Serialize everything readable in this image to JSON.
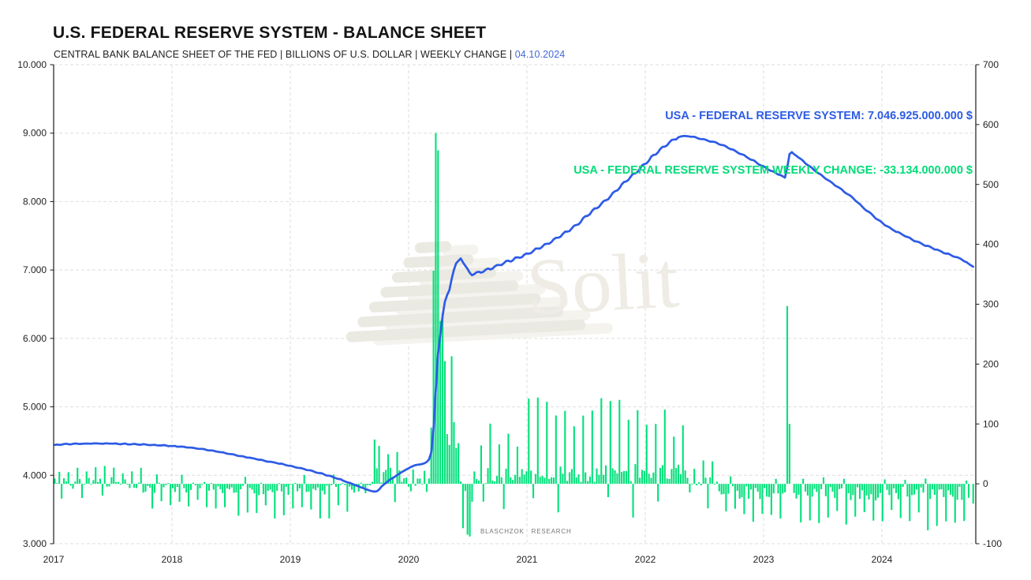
{
  "header": {
    "title": "U.S. FEDERAL RESERVE SYSTEM - BALANCE SHEET",
    "subtitle_text": "CENTRAL BANK BALANCE SHEET OF THE FED | BILLIONS OF U.S. DOLLAR | WEEKLY CHANGE | ",
    "subtitle_date": "04.10.2024",
    "date_color": "#3f6bd4"
  },
  "legend": {
    "line1": "USA - FEDERAL RESERVE SYSTEM: 7.046.925.000.000 $",
    "line2": "USA - FEDERAL RESERVE SYSTEM WEEKLY CHANGE: -33.134.000.000 $",
    "line1_color": "#2d5be6",
    "line2_color": "#00dc78"
  },
  "watermark": {
    "text": "Solit",
    "color": "#eeece5"
  },
  "branding": {
    "text": "BLASCHZOK RESEARCH"
  },
  "chart_data": {
    "type": "combo line+bar",
    "title": "U.S. FEDERAL RESERVE SYSTEM - BALANCE SHEET",
    "grid": "dashed",
    "seed": 20241004,
    "x_axis": {
      "ticks": [
        "2017",
        "2018",
        "2019",
        "2020",
        "2021",
        "2022",
        "2023",
        "2024"
      ],
      "tick_values": [
        2017,
        2018,
        2019,
        2020,
        2021,
        2022,
        2023,
        2024
      ],
      "min": 2017.0,
      "max": 2024.79
    },
    "left_axis": {
      "ticks": [
        "10.000",
        "9.000",
        "8.000",
        "7.000",
        "6.000",
        "5.000",
        "4.000",
        "3.000"
      ],
      "tick_values": [
        10000,
        9000,
        8000,
        7000,
        6000,
        5000,
        4000,
        3000
      ],
      "min": 3000,
      "max": 10000,
      "unit": "billions of U.S. dollar"
    },
    "right_axis": {
      "ticks": [
        "700",
        "600",
        "500",
        "400",
        "300",
        "200",
        "100",
        "0",
        "-100"
      ],
      "tick_values": [
        700,
        600,
        500,
        400,
        300,
        200,
        100,
        0,
        -100
      ],
      "min": -100,
      "max": 700,
      "unit": "billions of U.S. dollar weekly change"
    },
    "series": [
      {
        "name": "USA - FEDERAL RESERVE SYSTEM",
        "type": "line",
        "axis": "left",
        "color": "#2d5be6",
        "last_value_billions": 7046.925,
        "anchors": [
          [
            2017.0,
            4440
          ],
          [
            2017.1,
            4455
          ],
          [
            2017.25,
            4462
          ],
          [
            2017.45,
            4464
          ],
          [
            2017.6,
            4458
          ],
          [
            2017.75,
            4450
          ],
          [
            2017.92,
            4436
          ],
          [
            2018.08,
            4418
          ],
          [
            2018.25,
            4386
          ],
          [
            2018.42,
            4336
          ],
          [
            2018.58,
            4282
          ],
          [
            2018.75,
            4224
          ],
          [
            2018.92,
            4168
          ],
          [
            2019.08,
            4108
          ],
          [
            2019.25,
            4032
          ],
          [
            2019.42,
            3940
          ],
          [
            2019.55,
            3856
          ],
          [
            2019.63,
            3802
          ],
          [
            2019.7,
            3760
          ],
          [
            2019.74,
            3768
          ],
          [
            2019.78,
            3852
          ],
          [
            2019.85,
            3945
          ],
          [
            2019.92,
            4020
          ],
          [
            2020.0,
            4105
          ],
          [
            2020.06,
            4150
          ],
          [
            2020.13,
            4168
          ],
          [
            2020.17,
            4220
          ],
          [
            2020.19,
            4312
          ],
          [
            2020.21,
            4668
          ],
          [
            2020.23,
            5254
          ],
          [
            2020.25,
            5811
          ],
          [
            2020.27,
            6083
          ],
          [
            2020.29,
            6368
          ],
          [
            2020.31,
            6573
          ],
          [
            2020.33,
            6656
          ],
          [
            2020.35,
            6721
          ],
          [
            2020.37,
            6934
          ],
          [
            2020.4,
            7095
          ],
          [
            2020.44,
            7169
          ],
          [
            2020.47,
            7084
          ],
          [
            2020.5,
            7012
          ],
          [
            2020.53,
            6921
          ],
          [
            2020.58,
            6956
          ],
          [
            2020.67,
            7006
          ],
          [
            2020.75,
            7060
          ],
          [
            2020.83,
            7122
          ],
          [
            2020.92,
            7176
          ],
          [
            2021.0,
            7230
          ],
          [
            2021.08,
            7302
          ],
          [
            2021.17,
            7380
          ],
          [
            2021.25,
            7462
          ],
          [
            2021.33,
            7552
          ],
          [
            2021.42,
            7656
          ],
          [
            2021.5,
            7782
          ],
          [
            2021.58,
            7898
          ],
          [
            2021.67,
            8022
          ],
          [
            2021.75,
            8152
          ],
          [
            2021.83,
            8288
          ],
          [
            2021.92,
            8424
          ],
          [
            2022.0,
            8556
          ],
          [
            2022.08,
            8690
          ],
          [
            2022.17,
            8816
          ],
          [
            2022.25,
            8922
          ],
          [
            2022.31,
            8958
          ],
          [
            2022.38,
            8952
          ],
          [
            2022.46,
            8922
          ],
          [
            2022.54,
            8888
          ],
          [
            2022.63,
            8842
          ],
          [
            2022.71,
            8782
          ],
          [
            2022.79,
            8712
          ],
          [
            2022.88,
            8630
          ],
          [
            2022.96,
            8548
          ],
          [
            2023.04,
            8470
          ],
          [
            2023.1,
            8420
          ],
          [
            2023.15,
            8380
          ],
          [
            2023.19,
            8340
          ],
          [
            2023.21,
            8660
          ],
          [
            2023.23,
            8732
          ],
          [
            2023.29,
            8650
          ],
          [
            2023.35,
            8570
          ],
          [
            2023.42,
            8470
          ],
          [
            2023.5,
            8370
          ],
          [
            2023.58,
            8270
          ],
          [
            2023.67,
            8160
          ],
          [
            2023.75,
            8060
          ],
          [
            2023.83,
            7930
          ],
          [
            2023.92,
            7800
          ],
          [
            2024.0,
            7690
          ],
          [
            2024.08,
            7600
          ],
          [
            2024.17,
            7520
          ],
          [
            2024.25,
            7450
          ],
          [
            2024.33,
            7385
          ],
          [
            2024.42,
            7325
          ],
          [
            2024.5,
            7270
          ],
          [
            2024.58,
            7220
          ],
          [
            2024.67,
            7160
          ],
          [
            2024.72,
            7110
          ],
          [
            2024.75,
            7070
          ],
          [
            2024.768,
            7047
          ]
        ],
        "wiggle_segments": [
          {
            "from": 2017.0,
            "to": 2019.5,
            "amp": 4,
            "period": 0.083
          },
          {
            "from": 2020.56,
            "to": 2022.28,
            "amp": 17,
            "period": 0.082
          },
          {
            "from": 2022.4,
            "to": 2023.14,
            "amp": 7,
            "period": 0.083
          },
          {
            "from": 2023.3,
            "to": 2024.7,
            "amp": 7,
            "period": 0.083
          }
        ]
      },
      {
        "name": "USA - FEDERAL RESERVE SYSTEM WEEKLY CHANGE",
        "type": "bar",
        "axis": "right",
        "color": "#00e17a",
        "last_value_billions": -33.134,
        "explicit_bars": [
          [
            2019.712,
            74
          ],
          [
            2020.19,
            94
          ],
          [
            2020.21,
            356
          ],
          [
            2020.229,
            586
          ],
          [
            2020.248,
            557
          ],
          [
            2020.267,
            272
          ],
          [
            2020.286,
            285
          ],
          [
            2020.306,
            205
          ],
          [
            2020.325,
            83
          ],
          [
            2020.344,
            65
          ],
          [
            2020.363,
            213
          ],
          [
            2020.382,
            103
          ],
          [
            2020.402,
            60
          ],
          [
            2020.421,
            68
          ],
          [
            2020.44,
            4
          ],
          [
            2020.459,
            -74
          ],
          [
            2020.478,
            -12
          ],
          [
            2020.498,
            -85
          ],
          [
            2020.517,
            -88
          ],
          [
            2020.536,
            -30
          ],
          [
            2023.206,
            297
          ],
          [
            2023.225,
            100
          ],
          [
            2024.764,
            -33
          ]
        ],
        "noise_segments": [
          {
            "from": 2017.0,
            "to": 2017.77,
            "base": 1,
            "amp": 11,
            "spike_every": 4,
            "spike_amp": 24,
            "alt_every": 9,
            "alt_amp": -26
          },
          {
            "from": 2017.77,
            "to": 2018.5,
            "base": -6,
            "amp": 10,
            "spike_every": 4,
            "spike_amp": -32,
            "alt_every": 11,
            "alt_amp": 20
          },
          {
            "from": 2018.5,
            "to": 2019.55,
            "base": -9,
            "amp": 11,
            "spike_every": 4,
            "spike_amp": -46,
            "alt_every": 13,
            "alt_amp": 22
          },
          {
            "from": 2019.55,
            "to": 2019.7,
            "base": -4,
            "amp": 9,
            "spike_every": 5,
            "spike_amp": -22,
            "alt_every": 8,
            "alt_amp": 12
          },
          {
            "from": 2019.7,
            "to": 2019.96,
            "base": 14,
            "amp": 16,
            "spike_every": 4,
            "spike_amp": 60,
            "alt_every": 7,
            "alt_amp": -30
          },
          {
            "from": 2019.96,
            "to": 2020.18,
            "base": 2,
            "amp": 10,
            "spike_every": 5,
            "spike_amp": 24,
            "alt_every": 7,
            "alt_amp": -16
          },
          {
            "from": 2020.55,
            "to": 2020.96,
            "base": 16,
            "amp": 15,
            "spike_every": 4,
            "spike_amp": 80,
            "alt_every": 9,
            "alt_amp": -40
          },
          {
            "from": 2020.96,
            "to": 2022.35,
            "base": 18,
            "amp": 15,
            "spike_every": 4,
            "spike_amp": 112,
            "alt_every": 11,
            "alt_amp": -44
          },
          {
            "from": 2022.35,
            "to": 2022.62,
            "base": -2,
            "amp": 13,
            "spike_every": 4,
            "spike_amp": 34,
            "alt_every": 6,
            "alt_amp": -32
          },
          {
            "from": 2022.62,
            "to": 2023.19,
            "base": -15,
            "amp": 11,
            "spike_every": 4,
            "spike_amp": -54,
            "alt_every": 10,
            "alt_amp": 10
          },
          {
            "from": 2023.25,
            "to": 2024.75,
            "base": -16,
            "amp": 12,
            "spike_every": 4,
            "spike_amp": -60,
            "alt_every": 9,
            "alt_amp": 9
          }
        ]
      }
    ]
  }
}
